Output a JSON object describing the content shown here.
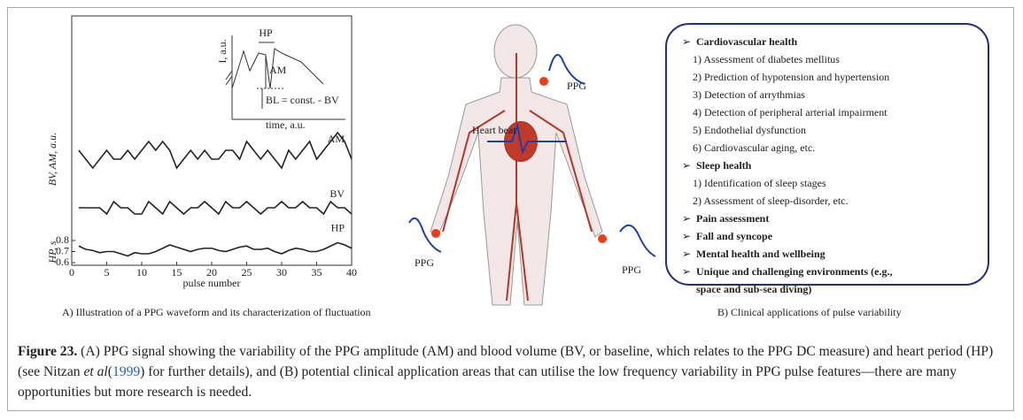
{
  "figure": {
    "panel_a": {
      "chart_data": {
        "type": "line",
        "y_label": "BV, AM, a.u.",
        "y2_label": "HP, s",
        "x_label": "pulse number",
        "x": [
          1,
          2,
          3,
          4,
          5,
          6,
          7,
          8,
          9,
          10,
          11,
          12,
          13,
          14,
          15,
          16,
          17,
          18,
          19,
          20,
          21,
          22,
          23,
          24,
          25,
          26,
          27,
          28,
          29,
          30,
          31,
          32,
          33,
          34,
          35,
          36,
          37,
          38,
          39,
          40
        ],
        "xlim": [
          0,
          40
        ],
        "xticks": [
          0,
          5,
          10,
          15,
          20,
          25,
          30,
          35,
          40
        ],
        "ylim": [
          0.6,
          0.8
        ],
        "yticks": [
          0.6,
          0.7,
          0.8
        ],
        "series": [
          {
            "name": "AM",
            "color": "#222222",
            "ylim": [
              0,
              10
            ],
            "values": [
              6,
              5,
              4,
              5,
              6,
              5,
              5,
              6,
              5,
              6,
              7,
              6,
              7,
              6,
              4,
              5,
              6,
              5,
              6,
              5,
              5,
              6,
              6,
              5,
              7,
              6,
              5,
              6,
              5,
              4,
              6,
              5,
              6,
              7,
              5,
              6,
              7,
              8,
              7,
              5
            ]
          },
          {
            "name": "BV",
            "color": "#222222",
            "ylim": [
              0,
              10
            ],
            "values": [
              5,
              5,
              5,
              5,
              4,
              6,
              5,
              5,
              4,
              4,
              6,
              5,
              4,
              6,
              5,
              4,
              5,
              5,
              6,
              5,
              4,
              6,
              5,
              5,
              6,
              5,
              4,
              5,
              5,
              6,
              5,
              5,
              6,
              5,
              5,
              4,
              6,
              5,
              5,
              4
            ]
          },
          {
            "name": "HP",
            "color": "#222222",
            "values": [
              0.75,
              0.72,
              0.71,
              0.69,
              0.7,
              0.7,
              0.68,
              0.66,
              0.69,
              0.68,
              0.68,
              0.7,
              0.73,
              0.76,
              0.74,
              0.72,
              0.7,
              0.72,
              0.73,
              0.73,
              0.71,
              0.7,
              0.72,
              0.74,
              0.75,
              0.72,
              0.72,
              0.73,
              0.7,
              0.68,
              0.71,
              0.73,
              0.72,
              0.7,
              0.7,
              0.72,
              0.75,
              0.78,
              0.76,
              0.73
            ]
          }
        ]
      },
      "inset": {
        "hp": "HP",
        "am": "AM",
        "bl": "BL = const. - BV",
        "y": "I, a.u.",
        "x": "time, a.u."
      },
      "caption": "A) Illustration of a PPG waveform and its characterization of fluctuation"
    },
    "body": {
      "ppg": [
        "PPG",
        "PPG",
        "PPG"
      ],
      "heart": "Heart beat"
    },
    "panel_b": {
      "sections": [
        {
          "title": "Cardiovascular health",
          "items": [
            "1) Assessment of diabetes mellitus",
            "2) Prediction of  hypotension and hypertension",
            "3) Detection of arrythmias",
            "4) Detection of peripheral arterial impairment",
            "5) Endothelial dysfunction",
            "6) Cardiovascular aging, etc."
          ]
        },
        {
          "title": "Sleep health",
          "items": [
            "1) Identification of sleep stages",
            "2) Assessment of sleep-disorder, etc."
          ]
        },
        {
          "title": "Pain assessment",
          "items": []
        },
        {
          "title": "Fall and syncope",
          "items": []
        },
        {
          "title": "Mental health and wellbeing",
          "items": []
        },
        {
          "title": "Unique and challenging environments (e.g.,",
          "items": [
            "space and sub-sea diving)"
          ]
        }
      ],
      "caption": "B) Clinical applications of pulse variability"
    },
    "caption": {
      "label": "Figure 23.",
      "text1": " (A) PPG signal showing the variability of the PPG amplitude (AM) and blood volume (BV, or baseline, which relates to the PPG DC measure) and heart period (HP) (see Nitzan ",
      "etal": "et al",
      "cite": "1999",
      "text2": ") for further details), and (B) potential clinical application areas that can utilise the low frequency variability in PPG pulse features—there are many opportunities but more research is needed."
    }
  }
}
